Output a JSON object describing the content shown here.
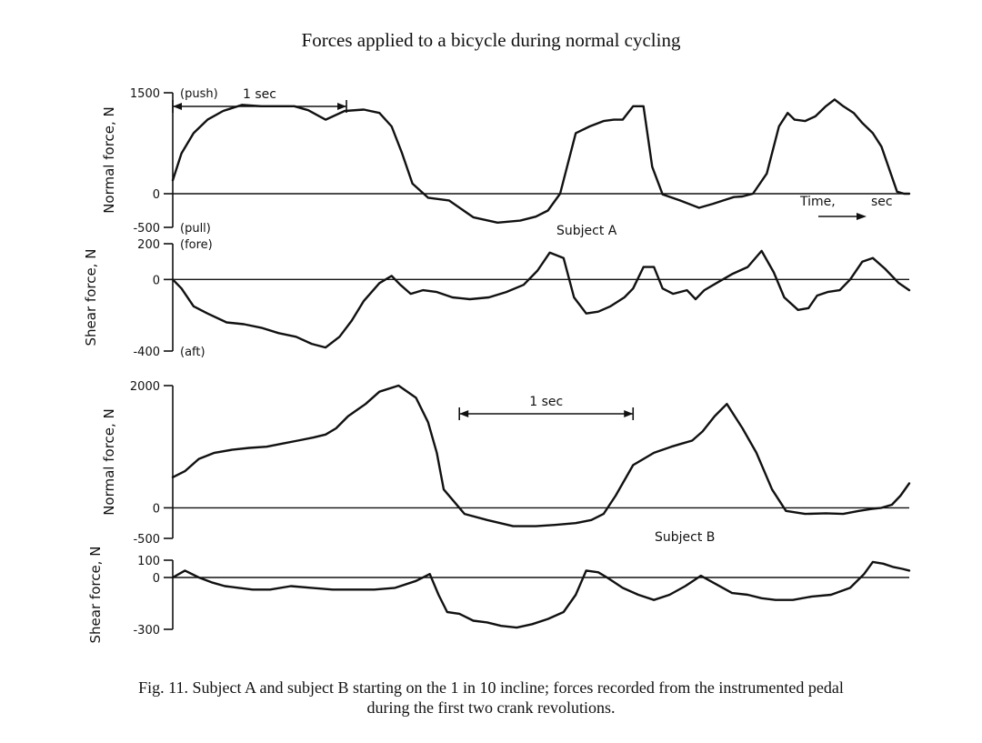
{
  "page": {
    "header": "Forces applied to a bicycle during normal cycling",
    "caption_line1": "Fig. 11.  Subject A and subject B starting on the 1 in 10 incline; forces recorded from the instrumented pedal",
    "caption_line2": "during the first two crank revolutions."
  },
  "chart_data": [
    {
      "type": "line",
      "title": "",
      "xlabel": "Time, sec",
      "ylabel": "Normal force, N",
      "ylim": [
        -500,
        1500
      ],
      "yticks": [
        {
          "value": 1500,
          "label": "1500",
          "annotation": "(push)"
        },
        {
          "value": 0,
          "label": "0",
          "annotation": ""
        },
        {
          "value": -500,
          "label": "-500",
          "annotation": "(pull)"
        }
      ],
      "grid": false,
      "annotations": {
        "subject": "Subject A",
        "scale_bar": "1 sec",
        "time_label": "Time,",
        "time_unit": "sec"
      },
      "scale_bar_sec": [
        0.0,
        1.0
      ],
      "series": [
        {
          "x": [
            0.0,
            0.05,
            0.12,
            0.2,
            0.29,
            0.4,
            0.51,
            0.6,
            0.7,
            0.78,
            0.88,
            0.99,
            1.1,
            1.19,
            1.26,
            1.32,
            1.38,
            1.47,
            1.59,
            1.73,
            1.87,
            2.0,
            2.09,
            2.16,
            2.23,
            2.32,
            2.4,
            2.48,
            2.54,
            2.59,
            2.65,
            2.71,
            2.76,
            2.82,
            2.92,
            3.03,
            3.11,
            3.17,
            3.23,
            3.28,
            3.34,
            3.42,
            3.49,
            3.54,
            3.58,
            3.64,
            3.7,
            3.76,
            3.81,
            3.86,
            3.92,
            3.97,
            4.03,
            4.08,
            4.12,
            4.17,
            4.21,
            4.24
          ],
          "y": [
            200,
            600,
            900,
            1100,
            1230,
            1320,
            1300,
            1300,
            1300,
            1240,
            1100,
            1230,
            1250,
            1200,
            1000,
            600,
            150,
            -60,
            -100,
            -350,
            -430,
            -400,
            -340,
            -250,
            0,
            900,
            1000,
            1080,
            1100,
            1100,
            1300,
            1300,
            400,
            -10,
            -100,
            -210,
            -150,
            -100,
            -50,
            -40,
            0,
            300,
            1000,
            1200,
            1100,
            1080,
            1150,
            1300,
            1400,
            1300,
            1200,
            1050,
            900,
            700,
            400,
            30,
            0,
            0
          ]
        }
      ]
    },
    {
      "type": "line",
      "title": "",
      "xlabel": "",
      "ylabel": "Shear force, N",
      "ylim": [
        -400,
        200
      ],
      "yticks": [
        {
          "value": 200,
          "label": "200",
          "annotation": "(fore)"
        },
        {
          "value": 0,
          "label": "0",
          "annotation": ""
        },
        {
          "value": -400,
          "label": "-400",
          "annotation": "(aft)"
        }
      ],
      "grid": false,
      "series": [
        {
          "x": [
            0.0,
            0.05,
            0.12,
            0.2,
            0.31,
            0.41,
            0.51,
            0.61,
            0.71,
            0.8,
            0.88,
            0.96,
            1.03,
            1.1,
            1.19,
            1.26,
            1.31,
            1.37,
            1.44,
            1.52,
            1.61,
            1.71,
            1.82,
            1.92,
            2.02,
            2.1,
            2.17,
            2.25,
            2.31,
            2.38,
            2.45,
            2.52,
            2.6,
            2.65,
            2.71,
            2.77,
            2.82,
            2.88,
            2.96,
            3.01,
            3.06,
            3.13,
            3.22,
            3.31,
            3.39,
            3.46,
            3.52,
            3.6,
            3.66,
            3.71,
            3.77,
            3.84,
            3.9,
            3.97,
            4.03,
            4.1,
            4.18,
            4.24
          ],
          "y": [
            0,
            -50,
            -150,
            -190,
            -240,
            -250,
            -270,
            -300,
            -320,
            -360,
            -380,
            -320,
            -230,
            -120,
            -20,
            20,
            -30,
            -80,
            -60,
            -70,
            -100,
            -110,
            -100,
            -70,
            -30,
            50,
            150,
            120,
            -100,
            -190,
            -180,
            -150,
            -100,
            -50,
            70,
            70,
            -50,
            -80,
            -60,
            -110,
            -60,
            -20,
            30,
            70,
            160,
            40,
            -100,
            -170,
            -160,
            -90,
            -70,
            -60,
            0,
            100,
            120,
            60,
            -20,
            -60
          ]
        }
      ]
    },
    {
      "type": "line",
      "title": "",
      "xlabel": "",
      "ylabel": "Normal force, N",
      "ylim": [
        -500,
        2000
      ],
      "yticks": [
        {
          "value": 2000,
          "label": "2000"
        },
        {
          "value": 0,
          "label": "0"
        },
        {
          "value": -500,
          "label": "-500"
        }
      ],
      "grid": false,
      "annotations": {
        "subject": "Subject B",
        "scale_bar": "1 sec"
      },
      "scale_bar_sec": [
        1.65,
        2.65
      ],
      "series": [
        {
          "x": [
            0.0,
            0.07,
            0.15,
            0.24,
            0.34,
            0.44,
            0.54,
            0.63,
            0.72,
            0.81,
            0.88,
            0.94,
            1.01,
            1.06,
            1.11,
            1.19,
            1.3,
            1.4,
            1.47,
            1.52,
            1.56,
            1.68,
            1.81,
            1.96,
            2.09,
            2.2,
            2.32,
            2.41,
            2.48,
            2.55,
            2.65,
            2.77,
            2.87,
            2.93,
            2.99,
            3.05,
            3.12,
            3.19,
            3.28,
            3.36,
            3.45,
            3.53,
            3.64,
            3.76,
            3.86,
            3.95,
            4.02,
            4.08,
            4.14,
            4.19,
            4.24
          ],
          "y": [
            500,
            600,
            800,
            900,
            950,
            980,
            1000,
            1050,
            1100,
            1150,
            1200,
            1300,
            1500,
            1600,
            1700,
            1900,
            2000,
            1800,
            1400,
            900,
            300,
            -100,
            -200,
            -300,
            -300,
            -280,
            -250,
            -200,
            -100,
            200,
            700,
            900,
            1000,
            1050,
            1100,
            1250,
            1500,
            1700,
            1300,
            900,
            300,
            -50,
            -100,
            -90,
            -100,
            -50,
            -20,
            0,
            50,
            200,
            400
          ]
        }
      ]
    },
    {
      "type": "line",
      "title": "",
      "xlabel": "",
      "ylabel": "Shear force, N",
      "ylim": [
        -300,
        100
      ],
      "yticks": [
        {
          "value": 100,
          "label": "100"
        },
        {
          "value": 0,
          "label": "0"
        },
        {
          "value": -300,
          "label": "-300"
        }
      ],
      "grid": false,
      "series": [
        {
          "x": [
            0.0,
            0.07,
            0.15,
            0.23,
            0.3,
            0.38,
            0.46,
            0.56,
            0.68,
            0.8,
            0.92,
            1.04,
            1.16,
            1.28,
            1.4,
            1.48,
            1.53,
            1.58,
            1.65,
            1.73,
            1.81,
            1.89,
            1.98,
            2.07,
            2.16,
            2.25,
            2.32,
            2.38,
            2.45,
            2.5,
            2.53,
            2.59,
            2.68,
            2.77,
            2.86,
            2.95,
            3.04,
            3.13,
            3.22,
            3.31,
            3.39,
            3.47,
            3.57,
            3.68,
            3.79,
            3.9,
            3.98,
            4.03,
            4.09,
            4.15,
            4.2,
            4.24
          ],
          "y": [
            0,
            40,
            0,
            -30,
            -50,
            -60,
            -70,
            -70,
            -50,
            -60,
            -70,
            -70,
            -70,
            -60,
            -20,
            20,
            -100,
            -200,
            -210,
            -250,
            -260,
            -280,
            -290,
            -270,
            -240,
            -200,
            -100,
            40,
            30,
            0,
            -20,
            -60,
            -100,
            -130,
            -100,
            -50,
            10,
            -40,
            -90,
            -100,
            -120,
            -130,
            -130,
            -110,
            -100,
            -60,
            20,
            90,
            80,
            60,
            50,
            40
          ]
        }
      ]
    }
  ]
}
